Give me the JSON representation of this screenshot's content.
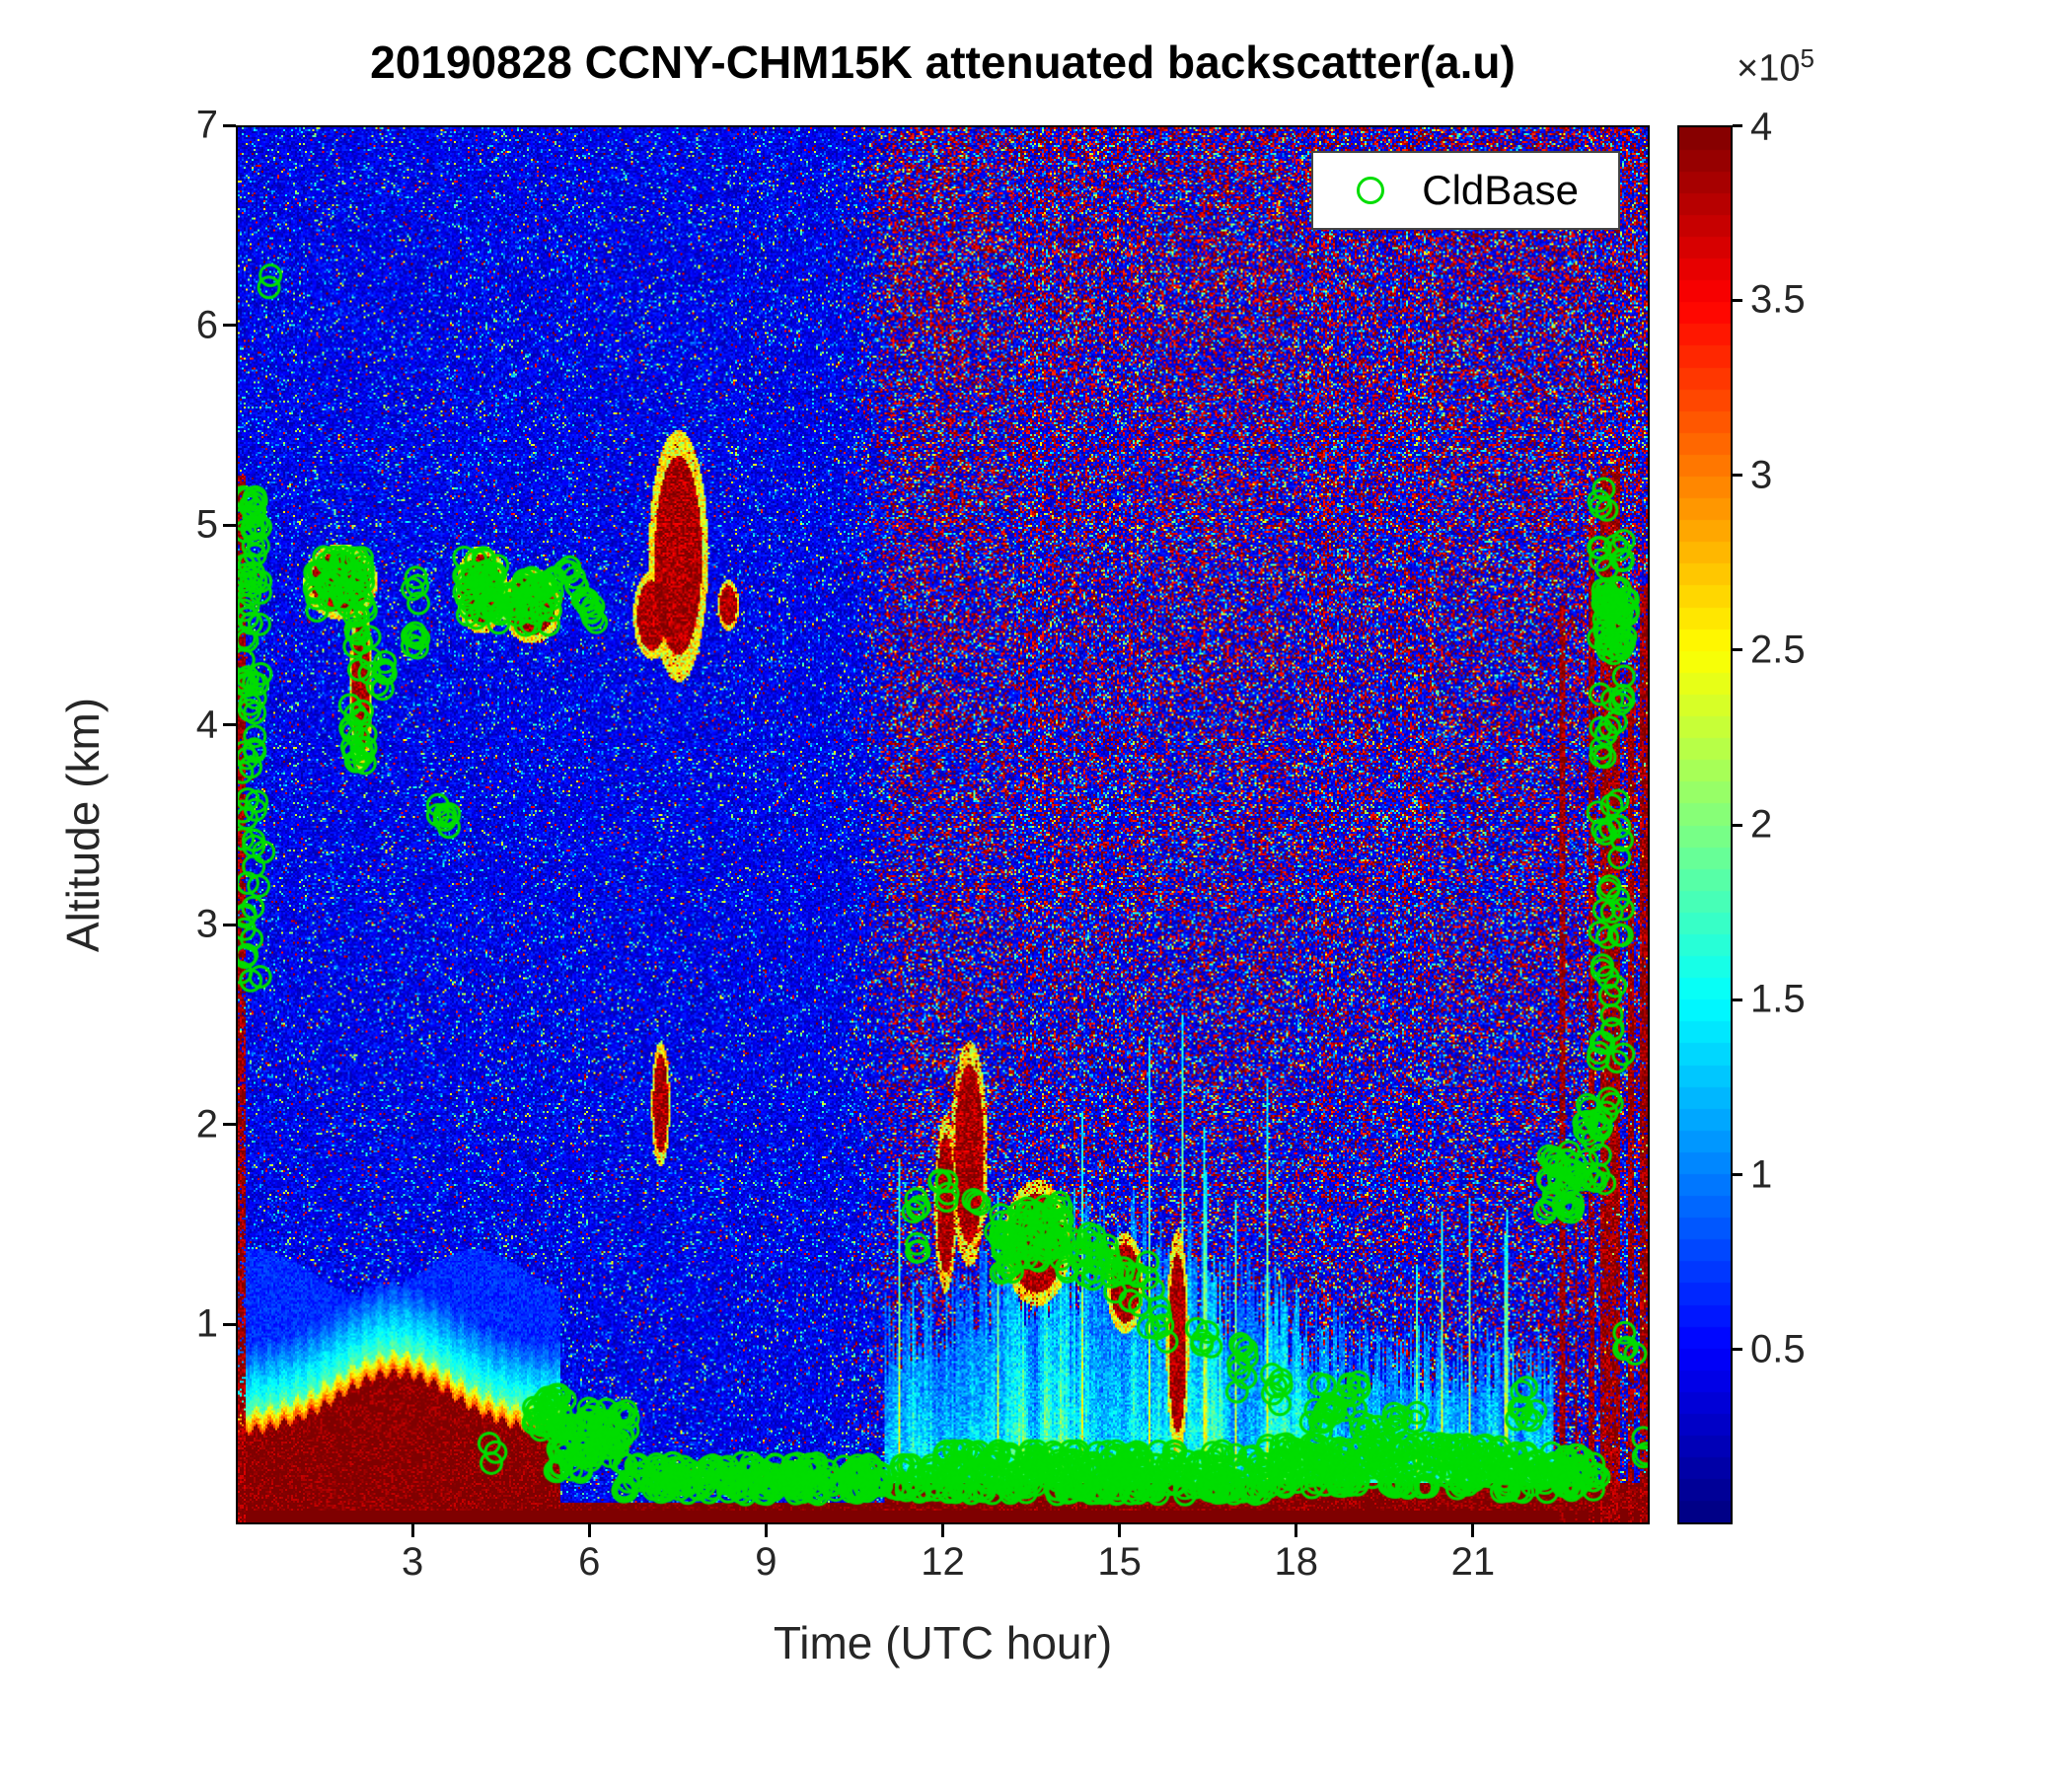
{
  "chart_data": {
    "type": "heatmap",
    "title": "20190828 CCNY-CHM15K attenuated backscatter(a.u)",
    "xlabel": "Time (UTC hour)",
    "ylabel": "Altitude (km)",
    "x_range": [
      0,
      24
    ],
    "y_range": [
      0,
      7
    ],
    "xticks": [
      3,
      6,
      9,
      12,
      15,
      18,
      21
    ],
    "yticks": [
      1,
      2,
      3,
      4,
      5,
      6,
      7
    ],
    "colormap": "jet",
    "grid": false,
    "colorbar": {
      "range": [
        0,
        4
      ],
      "ticks": [
        0.5,
        1,
        1.5,
        2,
        2.5,
        3,
        3.5,
        4
      ],
      "levels": 64,
      "multiplier": "×10",
      "exponent": "5",
      "units": "a.u"
    },
    "legend": {
      "label": "CldBase",
      "marker": "circle",
      "marker_color": "#00dd00",
      "position": "top-right"
    },
    "background_model": {
      "noise_transition_hours": [
        10.2,
        11.5
      ],
      "left_base_value_1e5": [
        0.16,
        0.66
      ],
      "right_red_speck_prob_max": 0.36,
      "surface_red_layer": {
        "hours": [
          0,
          5.5
        ],
        "peak_hour": 2.7,
        "peak_top_km": 0.75,
        "base_top_km": 0.45
      },
      "clean_blue_hours": [
        5.5,
        11
      ],
      "convective_layer": {
        "hours": [
          11,
          22.4
        ],
        "peak_hour": 14.8,
        "typical_top_km": 1.4
      }
    },
    "cloud_plumes": [
      {
        "t": 1.75,
        "a": 4.72,
        "w": 1.0,
        "h": 0.3
      },
      {
        "t": 2.1,
        "a": 4.2,
        "w": 0.3,
        "h": 0.7
      },
      {
        "t": 4.15,
        "a": 4.68,
        "w": 0.7,
        "h": 0.35
      },
      {
        "t": 5.0,
        "a": 4.6,
        "w": 0.8,
        "h": 0.3
      },
      {
        "t": 7.5,
        "a": 4.85,
        "w": 0.8,
        "h": 1.0
      },
      {
        "t": 7.05,
        "a": 4.55,
        "w": 0.5,
        "h": 0.35
      },
      {
        "t": 8.35,
        "a": 4.6,
        "w": 0.3,
        "h": 0.2
      },
      {
        "t": 7.2,
        "a": 2.1,
        "w": 0.25,
        "h": 0.5
      },
      {
        "t": 12.05,
        "a": 1.6,
        "w": 0.3,
        "h": 0.7
      },
      {
        "t": 12.45,
        "a": 1.85,
        "w": 0.5,
        "h": 0.9
      },
      {
        "t": 13.6,
        "a": 1.4,
        "w": 0.9,
        "h": 0.5
      },
      {
        "t": 15.1,
        "a": 1.2,
        "w": 0.5,
        "h": 0.4
      },
      {
        "t": 16.0,
        "a": 0.9,
        "w": 0.3,
        "h": 0.9
      }
    ],
    "red_columns": [
      {
        "t": 0.06,
        "w": 0.13,
        "top": 5.25
      },
      {
        "t": 22.55,
        "w": 0.09,
        "top": 4.6
      },
      {
        "t": 22.78,
        "w": 0.05,
        "top": 1.9
      },
      {
        "t": 23.05,
        "w": 0.1,
        "top": 5.0
      },
      {
        "t": 23.35,
        "w": 0.34,
        "top": 5.3
      },
      {
        "t": 23.7,
        "w": 0.1,
        "top": 4.3
      },
      {
        "t": 23.93,
        "w": 0.13,
        "top": 4.7
      }
    ],
    "cloud_base_clusters": [
      {
        "t": [
          0.05,
          0.45
        ],
        "a": [
          2.7,
          3.65
        ],
        "n": 22
      },
      {
        "t": [
          0.05,
          0.4
        ],
        "a": [
          4.2,
          5.15
        ],
        "n": 50
      },
      {
        "t": [
          0.05,
          0.35
        ],
        "a": [
          3.6,
          4.25
        ],
        "n": 12
      },
      {
        "t": [
          0.5,
          0.62
        ],
        "a": [
          6.15,
          6.28
        ],
        "n": 2
      },
      {
        "t": [
          1.25,
          2.2
        ],
        "a": [
          4.55,
          4.85
        ],
        "n": 48
      },
      {
        "t": [
          1.95,
          2.3
        ],
        "a": [
          4.25,
          4.55
        ],
        "n": 10
      },
      {
        "t": [
          1.9,
          2.2
        ],
        "a": [
          3.8,
          4.12
        ],
        "n": 18
      },
      {
        "t": [
          2.3,
          2.55
        ],
        "a": [
          4.1,
          4.35
        ],
        "n": 6
      },
      {
        "t": [
          2.9,
          3.2
        ],
        "a": [
          4.3,
          4.5
        ],
        "n": 6
      },
      {
        "t": [
          2.95,
          3.15
        ],
        "a": [
          4.6,
          4.75
        ],
        "n": 4
      },
      {
        "t": [
          3.35,
          3.6
        ],
        "a": [
          3.48,
          3.62
        ],
        "n": 7
      },
      {
        "t": [
          3.85,
          4.5
        ],
        "a": [
          4.5,
          4.85
        ],
        "n": 42
      },
      {
        "t": [
          4.6,
          5.4
        ],
        "a": [
          4.5,
          4.75
        ],
        "n": 42
      },
      {
        "t": [
          5.55,
          5.78
        ],
        "a": [
          4.68,
          4.8
        ],
        "n": 6
      },
      {
        "t": [
          5.85,
          6.15
        ],
        "a": [
          4.5,
          4.66
        ],
        "n": 9
      },
      {
        "t": [
          4.25,
          4.55
        ],
        "a": [
          0.28,
          0.4
        ],
        "n": 3
      },
      {
        "t": [
          5.0,
          5.6
        ],
        "a": [
          0.45,
          0.65
        ],
        "n": 30
      },
      {
        "t": [
          5.4,
          5.95
        ],
        "a": [
          0.25,
          0.5
        ],
        "n": 35
      },
      {
        "t": [
          5.95,
          6.65
        ],
        "a": [
          0.3,
          0.58
        ],
        "n": 45
      },
      {
        "t": [
          6.5,
          12.0
        ],
        "a": [
          0.14,
          0.3
        ],
        "n": 230
      },
      {
        "t": [
          12.0,
          17.5
        ],
        "a": [
          0.14,
          0.36
        ],
        "n": 310
      },
      {
        "t": [
          17.5,
          21.5
        ],
        "a": [
          0.17,
          0.4
        ],
        "n": 210
      },
      {
        "t": [
          21.5,
          23.2
        ],
        "a": [
          0.15,
          0.35
        ],
        "n": 85
      },
      {
        "t": [
          11.45,
          11.68
        ],
        "a": [
          1.35,
          1.75
        ],
        "n": 8
      },
      {
        "t": [
          11.9,
          12.18
        ],
        "a": [
          1.58,
          1.74
        ],
        "n": 5
      },
      {
        "t": [
          12.5,
          12.72
        ],
        "a": [
          1.55,
          1.66
        ],
        "n": 3
      },
      {
        "t": [
          12.9,
          13.3
        ],
        "a": [
          1.25,
          1.55
        ],
        "n": 26
      },
      {
        "t": [
          13.3,
          14.1
        ],
        "a": [
          1.3,
          1.62
        ],
        "n": 48
      },
      {
        "t": [
          14.1,
          14.9
        ],
        "a": [
          1.22,
          1.45
        ],
        "n": 26
      },
      {
        "t": [
          14.9,
          15.6
        ],
        "a": [
          1.08,
          1.32
        ],
        "n": 13
      },
      {
        "t": [
          15.5,
          15.85
        ],
        "a": [
          0.9,
          1.1
        ],
        "n": 6
      },
      {
        "t": [
          16.3,
          16.62
        ],
        "a": [
          0.85,
          1.02
        ],
        "n": 5
      },
      {
        "t": [
          16.9,
          17.25
        ],
        "a": [
          0.65,
          0.95
        ],
        "n": 8
      },
      {
        "t": [
          17.5,
          17.85
        ],
        "a": [
          0.55,
          0.75
        ],
        "n": 6
      },
      {
        "t": [
          18.2,
          19.2
        ],
        "a": [
          0.45,
          0.72
        ],
        "n": 26
      },
      {
        "t": [
          19.2,
          20.1
        ],
        "a": [
          0.35,
          0.56
        ],
        "n": 20
      },
      {
        "t": [
          21.7,
          22.1
        ],
        "a": [
          0.5,
          0.7
        ],
        "n": 10
      },
      {
        "t": [
          22.25,
          22.88
        ],
        "a": [
          1.55,
          1.88
        ],
        "n": 36
      },
      {
        "t": [
          22.9,
          23.3
        ],
        "a": [
          1.7,
          2.1
        ],
        "n": 20
      },
      {
        "t": [
          23.15,
          23.6
        ],
        "a": [
          2.0,
          5.2
        ],
        "n": 72
      },
      {
        "t": [
          23.25,
          23.68
        ],
        "a": [
          4.35,
          4.7
        ],
        "n": 42
      },
      {
        "t": [
          23.6,
          23.88
        ],
        "a": [
          0.78,
          1.0
        ],
        "n": 4
      },
      {
        "t": [
          23.8,
          24.0
        ],
        "a": [
          0.3,
          0.46
        ],
        "n": 3
      }
    ]
  }
}
